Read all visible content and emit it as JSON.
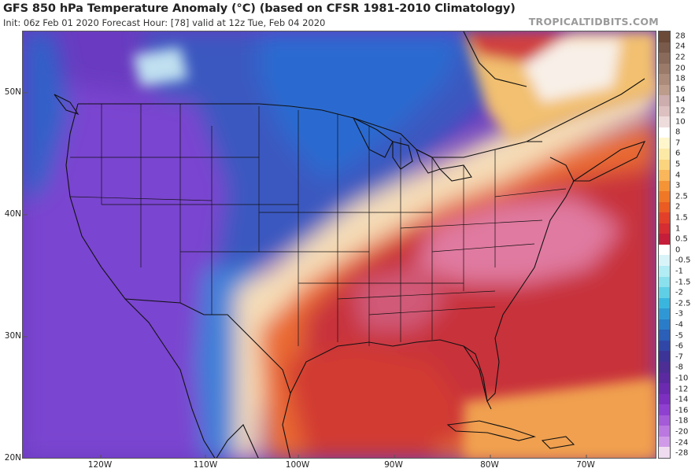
{
  "title": "GFS 850 hPa Temperature Anomaly (°C) (based on CFSR 1981-2010 Climatology)",
  "subtitle": "Init: 06z Feb 01 2020   Forecast Hour: [78]   valid at 12z Tue, Feb 04 2020",
  "brand": "TROPICALTIDBITS.COM",
  "latitude_labels": [
    "50N",
    "40N",
    "30N",
    "20N"
  ],
  "longitude_labels": [
    "120W",
    "110W",
    "100W",
    "90W",
    "80W",
    "70W"
  ],
  "colorbar": {
    "labels": [
      "28",
      "24",
      "22",
      "20",
      "18",
      "16",
      "14",
      "12",
      "10",
      "8",
      "7",
      "6",
      "5",
      "4",
      "3",
      "2.5",
      "2",
      "1.5",
      "1",
      "0.5",
      "0",
      "-0.5",
      "-1",
      "-1.5",
      "-2",
      "-2.5",
      "-3",
      "-4",
      "-5",
      "-6",
      "-7",
      "-8",
      "-10",
      "-12",
      "-14",
      "-16",
      "-18",
      "-20",
      "-24",
      "-28"
    ],
    "colors": [
      "#6b4a3a",
      "#7a5a4a",
      "#8a6a5a",
      "#9b7a6a",
      "#ac8b7b",
      "#bd9c8c",
      "#cdadad",
      "#ddc0c0",
      "#eedcdc",
      "#ffffff",
      "#fff6cc",
      "#fde9a6",
      "#fbd47e",
      "#f9b65a",
      "#f49436",
      "#ef7826",
      "#ea5c22",
      "#e3402a",
      "#d62d33",
      "#c41e3a",
      "#ffffff",
      "#d9f4f8",
      "#b2ecf4",
      "#8be0ee",
      "#5fcfe6",
      "#3ab6de",
      "#2f98d4",
      "#2a7cc8",
      "#2b5fb8",
      "#3147a8",
      "#3d3498",
      "#4c2e95",
      "#5b2aa0",
      "#6b2ab0",
      "#7d30c0",
      "#9040d0",
      "#a55ad8",
      "#bb78e0",
      "#d09ae8",
      "#f0dcf0"
    ]
  },
  "map_colors": {
    "cold_deep": "#5b2aa0",
    "cold_mid": "#7d40c8",
    "cold_blue": "#2b5fb8",
    "neutral": "#f6f0e6",
    "warm_orange": "#f08030",
    "warm_red": "#d0303a",
    "warm_pink": "#e07090",
    "land_borders": "#111111"
  }
}
